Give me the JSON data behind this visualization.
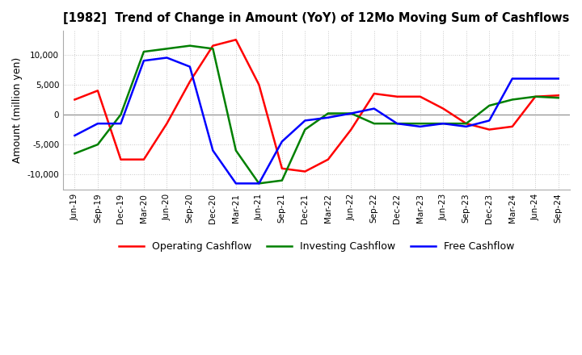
{
  "title": "[1982]  Trend of Change in Amount (YoY) of 12Mo Moving Sum of Cashflows",
  "ylabel": "Amount (million yen)",
  "background_color": "#ffffff",
  "grid_color": "#c8c8c8",
  "x_labels": [
    "Jun-19",
    "Sep-19",
    "Dec-19",
    "Mar-20",
    "Jun-20",
    "Sep-20",
    "Dec-20",
    "Mar-21",
    "Jun-21",
    "Sep-21",
    "Dec-21",
    "Mar-22",
    "Jun-22",
    "Sep-22",
    "Dec-22",
    "Mar-23",
    "Jun-23",
    "Sep-23",
    "Dec-23",
    "Mar-24",
    "Jun-24",
    "Sep-24"
  ],
  "operating": [
    2500,
    4000,
    -7500,
    -7500,
    -1500,
    5500,
    11500,
    12500,
    5000,
    -9000,
    -9500,
    -7500,
    -2500,
    3500,
    3000,
    3000,
    1000,
    -1500,
    -2500,
    -2000,
    3000,
    3200
  ],
  "investing": [
    -6500,
    -5000,
    0,
    10500,
    11000,
    11500,
    11000,
    -6000,
    -11500,
    -11000,
    -2500,
    200,
    200,
    -1500,
    -1500,
    -1500,
    -1500,
    -1500,
    1500,
    2500,
    3000,
    2800
  ],
  "free": [
    -3500,
    -1500,
    -1500,
    9000,
    9500,
    8000,
    -6000,
    -11500,
    -11500,
    -4500,
    -1000,
    -500,
    200,
    1000,
    -1500,
    -2000,
    -1500,
    -2000,
    -1000,
    6000,
    6000,
    6000
  ],
  "ylim": [
    -12500,
    14000
  ],
  "yticks": [
    -10000,
    -5000,
    0,
    5000,
    10000
  ],
  "operating_color": "#ff0000",
  "investing_color": "#008000",
  "free_color": "#0000ff",
  "line_width": 1.8
}
